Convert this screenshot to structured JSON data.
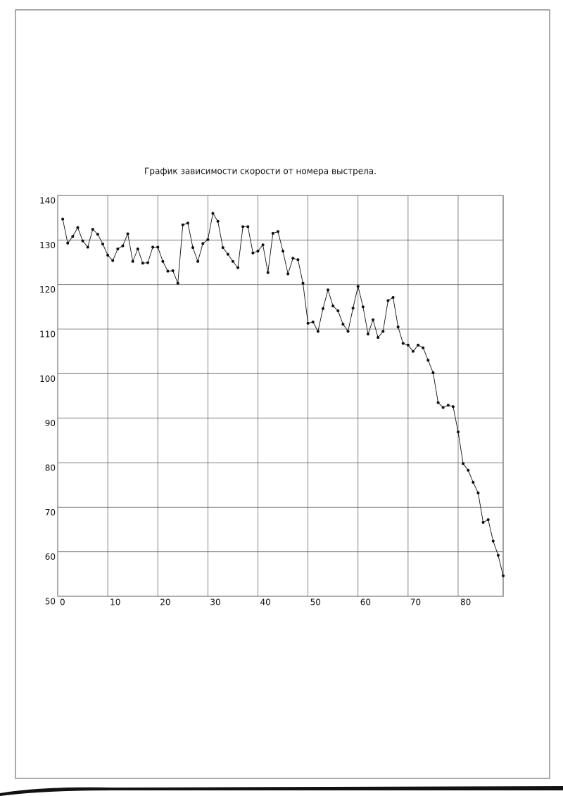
{
  "chart_data": {
    "type": "line",
    "title": "График зависимости скорости от номера выстрела.",
    "x": [
      1,
      2,
      3,
      4,
      5,
      6,
      7,
      8,
      9,
      10,
      11,
      12,
      13,
      14,
      15,
      16,
      17,
      18,
      19,
      20,
      21,
      22,
      23,
      24,
      25,
      26,
      27,
      28,
      29,
      30,
      31,
      32,
      33,
      34,
      35,
      36,
      37,
      38,
      39,
      40,
      41,
      42,
      43,
      44,
      45,
      46,
      47,
      48,
      49,
      50,
      51,
      52,
      53,
      54,
      55,
      56,
      57,
      58,
      59,
      60,
      61,
      62,
      63,
      64,
      65,
      66,
      67,
      68,
      69,
      70,
      71,
      72,
      73,
      74,
      75,
      76,
      77,
      78,
      79,
      80,
      81,
      82,
      83,
      84,
      85,
      86,
      87,
      88,
      89
    ],
    "values": [
      134.7,
      129.3,
      130.8,
      132.8,
      129.8,
      128.4,
      132.4,
      131.3,
      129.1,
      126.6,
      125.4,
      128,
      128.7,
      131.4,
      125.2,
      128,
      124.8,
      124.9,
      128.4,
      128.4,
      125.2,
      123,
      123.1,
      120.3,
      133.4,
      133.8,
      128.3,
      125.2,
      129.2,
      130.1,
      136,
      134.2,
      128.3,
      126.8,
      125.2,
      123.8,
      133,
      133,
      127.1,
      127.5,
      128.9,
      122.7,
      131.5,
      131.9,
      127.5,
      122.4,
      125.9,
      125.6,
      120.3,
      111.3,
      111.6,
      109.5,
      114.6,
      118.8,
      115.2,
      114.1,
      111.1,
      109.5,
      114.7,
      119.6,
      115,
      108.9,
      112.1,
      108.1,
      109.5,
      116.4,
      117.1,
      110.5,
      106.8,
      106.4,
      105,
      106.4,
      105.8,
      103,
      100.2,
      93.5,
      92.4,
      92.9,
      92.6,
      86.9,
      79.8,
      78.3,
      75.6,
      73.2,
      66.6,
      67.2,
      62.4,
      59.2,
      54.6
    ],
    "color": "#111111",
    "xlim": [
      0,
      89
    ],
    "ylim": [
      50,
      140
    ],
    "xticks": [
      0,
      10,
      20,
      30,
      40,
      50,
      60,
      70,
      80
    ],
    "yticks": [
      50,
      60,
      70,
      80,
      90,
      100,
      110,
      120,
      130,
      140
    ],
    "grid": true
  }
}
